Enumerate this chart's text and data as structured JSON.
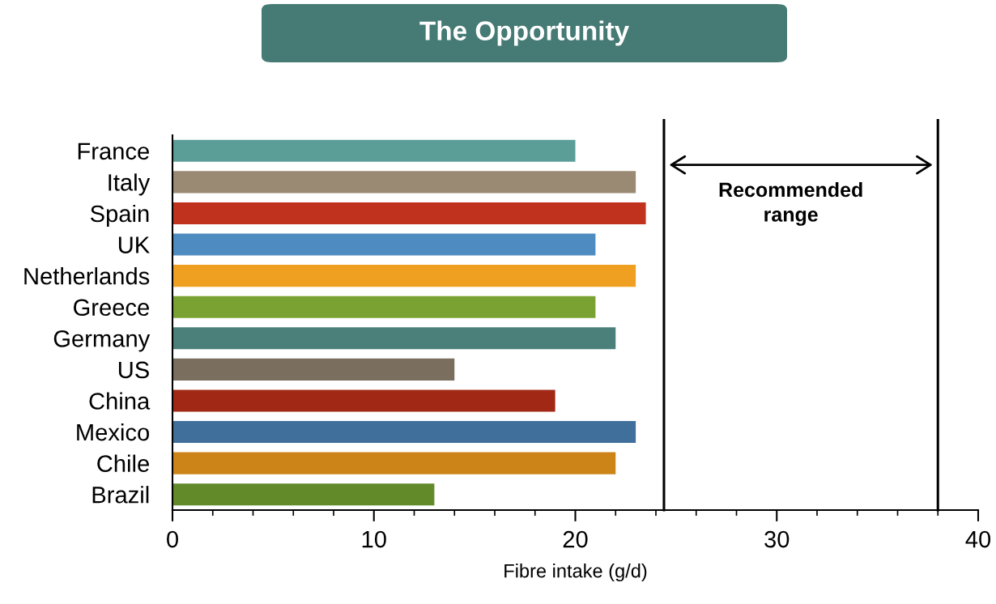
{
  "chart_data": {
    "type": "bar",
    "orientation": "horizontal",
    "title": "The Opportunity",
    "xlabel": "Fibre intake (g/d)",
    "categories": [
      "France",
      "Italy",
      "Spain",
      "UK",
      "Netherlands",
      "Greece",
      "Germany",
      "US",
      "China",
      "Mexico",
      "Chile",
      "Brazil"
    ],
    "values": [
      20,
      23,
      23.5,
      21,
      23,
      21,
      22,
      14,
      19,
      23,
      22,
      13
    ],
    "colors": [
      "#5b9e98",
      "#9a8a73",
      "#c0321e",
      "#4e8bc0",
      "#f0a020",
      "#7aa232",
      "#4a7f7a",
      "#7a6f5e",
      "#a02815",
      "#3f6f9a",
      "#cc8418",
      "#628a28"
    ],
    "xlim": [
      0,
      40
    ],
    "xticks": [
      0,
      10,
      20,
      30,
      40
    ],
    "ref_lines": [
      {
        "axis": "x",
        "value": 24.4,
        "color": "#000000"
      },
      {
        "axis": "x",
        "value": 38,
        "color": "#000000"
      }
    ],
    "annotations": [
      "Recommended\nrange"
    ],
    "grid": false,
    "legend": false
  }
}
